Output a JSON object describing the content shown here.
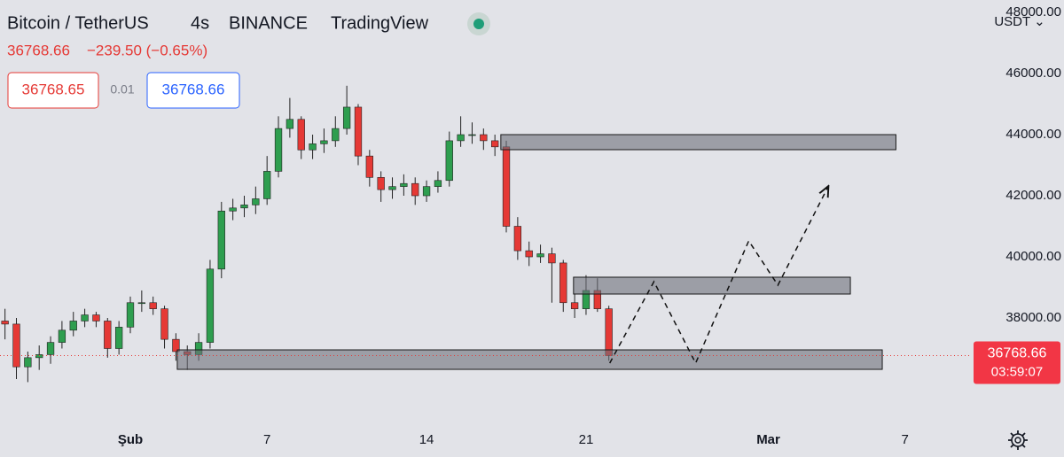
{
  "header": {
    "symbol": "Bitcoin / TetherUS",
    "interval": "4s",
    "exchange": "BINANCE",
    "source": "TradingView",
    "last_price": 36768.66,
    "change_label": "−239.50 (−0.65%)",
    "bid": 36768.65,
    "spread": 0.01,
    "ask": 36768.66,
    "currency": "USDT ⌄"
  },
  "chart_data": {
    "type": "candlestick",
    "up_color": "#2e9e4f",
    "down_color": "#e53935",
    "x": [
      -4.5,
      -4.0,
      -3.5,
      -3.0,
      -2.5,
      -2.0,
      -1.5,
      -1.0,
      -0.5,
      0.0,
      0.5,
      1.0,
      1.5,
      2.0,
      2.5,
      3.0,
      3.5,
      4.0,
      4.5,
      5.0,
      5.5,
      6.0,
      6.5,
      7.0,
      7.5,
      8.0,
      8.5,
      9.0,
      9.5,
      10.0,
      10.5,
      11.0,
      11.5,
      12.0,
      12.5,
      13.0,
      13.5,
      14.0,
      14.5,
      15.0,
      15.5,
      16.0,
      16.5,
      17.0,
      17.5,
      18.0,
      18.5,
      19.0,
      19.5,
      20.0,
      20.5,
      21.0,
      21.5,
      22.0
    ],
    "open": [
      37900,
      37800,
      36400,
      36700,
      36800,
      37200,
      37600,
      37900,
      38100,
      37900,
      37000,
      37700,
      38500,
      38500,
      38300,
      37300,
      36900,
      36800,
      37200,
      39600,
      41500,
      41600,
      41700,
      41900,
      42800,
      44200,
      44500,
      43500,
      43700,
      43800,
      44200,
      44900,
      43300,
      42600,
      42200,
      42300,
      42400,
      42000,
      42300,
      42500,
      43800,
      44000,
      44000,
      43800,
      43600,
      41000,
      40200,
      40000,
      40100,
      39800,
      38500,
      38300,
      38900,
      38300
    ],
    "close": [
      37800,
      36400,
      36700,
      36800,
      37200,
      37600,
      37900,
      38100,
      37900,
      37000,
      37700,
      38500,
      38500,
      38300,
      37300,
      36900,
      36800,
      37200,
      39600,
      41500,
      41600,
      41700,
      41900,
      42800,
      44200,
      44500,
      43500,
      43700,
      43800,
      44200,
      44900,
      43300,
      42600,
      42200,
      42300,
      42400,
      42000,
      42300,
      42500,
      43800,
      44000,
      44000,
      43800,
      43600,
      41000,
      40200,
      40000,
      40100,
      39800,
      38500,
      38300,
      38900,
      38300,
      36768.66
    ],
    "high": [
      38300,
      38000,
      36900,
      37100,
      37400,
      37900,
      38200,
      38300,
      38200,
      38000,
      37900,
      38700,
      38900,
      38700,
      38400,
      37500,
      37100,
      37500,
      39900,
      41800,
      41900,
      42000,
      42300,
      43300,
      44600,
      45200,
      44600,
      44000,
      44200,
      44600,
      45600,
      45000,
      43500,
      42800,
      42600,
      42700,
      42600,
      42500,
      42800,
      44100,
      44600,
      44400,
      44200,
      44000,
      43800,
      41300,
      40500,
      40400,
      40300,
      39900,
      38800,
      39400,
      39300,
      38400
    ],
    "low": [
      37300,
      36000,
      35900,
      36300,
      36500,
      37000,
      37400,
      37700,
      37700,
      36700,
      36800,
      37500,
      38200,
      38100,
      37000,
      36600,
      36300,
      36600,
      37000,
      39300,
      41200,
      41300,
      41400,
      41700,
      42600,
      43900,
      43200,
      43200,
      43400,
      43600,
      44000,
      43000,
      42300,
      41800,
      41900,
      42000,
      41700,
      41800,
      42100,
      42300,
      43600,
      43700,
      43500,
      43300,
      40800,
      39900,
      39700,
      39800,
      38500,
      38200,
      38000,
      38100,
      38200,
      36600
    ],
    "zones": [
      {
        "x0": 17.26,
        "x1": 34.6,
        "y0": 43507,
        "y1": 44000
      },
      {
        "x0": 20.45,
        "x1": 32.6,
        "y0": 38783,
        "y1": 39334
      },
      {
        "x0": 3.06,
        "x1": 34.0,
        "y0": 36318,
        "y1": 36956
      }
    ],
    "projection": {
      "x": [
        22.04,
        23.98,
        25.81,
        28.14,
        29.42,
        31.64
      ],
      "y": [
        36522,
        39189,
        36522,
        40522,
        39073,
        42320
      ]
    },
    "xlim": [
      -4.72,
      37.89
    ],
    "ylim": [
      34493,
      48406
    ],
    "xticks": [
      {
        "value": 1,
        "label": "Şub"
      },
      7,
      14,
      21,
      {
        "value": 29,
        "label": "Mar"
      },
      {
        "value": 35,
        "label": "7"
      }
    ],
    "yticks": [
      {
        "value": 38000,
        "label": "38000.00"
      },
      {
        "value": 40000,
        "label": "40000.00"
      },
      {
        "value": 42000,
        "label": "42000.00"
      },
      {
        "value": 44000,
        "label": "44000.00"
      },
      {
        "value": 46000,
        "label": "46000.00"
      },
      {
        "value": 48000,
        "label": "48000.00"
      }
    ],
    "countdown": "03:59:07",
    "grid": false
  }
}
